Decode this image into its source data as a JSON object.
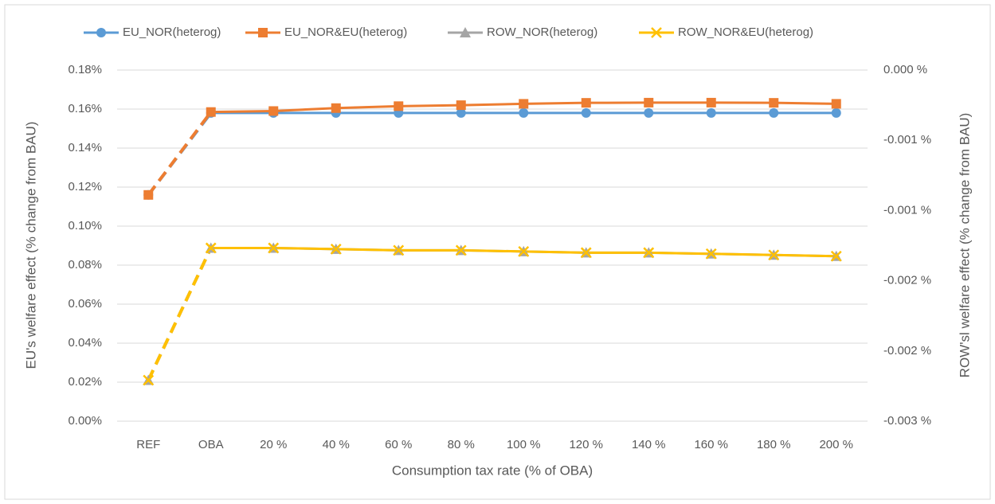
{
  "chart_data": {
    "type": "line",
    "x_label": "Consumption tax rate (% of OBA)",
    "y_label": "EU's welfare effect (% change from BAU)",
    "y2_label": "ROW'sl welfare effect (% change from BAU)",
    "categories": [
      "REF",
      "OBA",
      "20 %",
      "40 %",
      "60 %",
      "80 %",
      "100 %",
      "120 %",
      "140 %",
      "160 %",
      "180 %",
      "200 %"
    ],
    "ylim": [
      0,
      0.18
    ],
    "yticks": [
      {
        "value": 0,
        "label": "0.00%"
      },
      {
        "value": 0.02,
        "label": "0.02%"
      },
      {
        "value": 0.04,
        "label": "0.04%"
      },
      {
        "value": 0.06,
        "label": "0.06%"
      },
      {
        "value": 0.08,
        "label": "0.08%"
      },
      {
        "value": 0.1,
        "label": "0.10%"
      },
      {
        "value": 0.12,
        "label": "0.12%"
      },
      {
        "value": 0.14,
        "label": "0.14%"
      },
      {
        "value": 0.16,
        "label": "0.16%"
      },
      {
        "value": 0.18,
        "label": "0.18%"
      }
    ],
    "y2lim": [
      -0.003,
      0
    ],
    "y2ticks": [
      {
        "value": -0.003,
        "label": "-0.003 %"
      },
      {
        "value": -0.0024,
        "label": "-0.002 %"
      },
      {
        "value": -0.0018,
        "label": "-0.002 %"
      },
      {
        "value": -0.0012,
        "label": "-0.001 %"
      },
      {
        "value": -0.0006,
        "label": "-0.001 %"
      },
      {
        "value": 0,
        "label": "0.000 %"
      }
    ],
    "grid": true,
    "legend": "top",
    "dashed_first_segment": true,
    "series": [
      {
        "name": "EU_NOR(heterog)",
        "color": "#5b9bd5",
        "marker": "circle",
        "axis": "y",
        "values": [
          0.116,
          0.158,
          0.158,
          0.158,
          0.158,
          0.158,
          0.158,
          0.158,
          0.158,
          0.158,
          0.158,
          0.158
        ]
      },
      {
        "name": "EU_NOR&EU(heterog)",
        "color": "#ed7d31",
        "marker": "square",
        "axis": "y",
        "values": [
          0.116,
          0.1585,
          0.159,
          0.1605,
          0.1615,
          0.162,
          0.1627,
          0.1632,
          0.1633,
          0.1633,
          0.1632,
          0.1627
        ]
      },
      {
        "name": "ROW_NOR(heterog)",
        "color": "#a5a5a5",
        "marker": "triangle",
        "axis": "y2",
        "values": [
          -0.00265,
          -0.00152,
          -0.00152,
          -0.00153,
          -0.00154,
          -0.00154,
          -0.00155,
          -0.00156,
          -0.00156,
          -0.00157,
          -0.00158,
          -0.00159
        ]
      },
      {
        "name": "ROW_NOR&EU(heterog)",
        "color": "#ffc000",
        "marker": "x",
        "axis": "y2",
        "values": [
          -0.00265,
          -0.00152,
          -0.00152,
          -0.00153,
          -0.00154,
          -0.00154,
          -0.00155,
          -0.00156,
          -0.00156,
          -0.00157,
          -0.00158,
          -0.00159
        ]
      }
    ]
  }
}
